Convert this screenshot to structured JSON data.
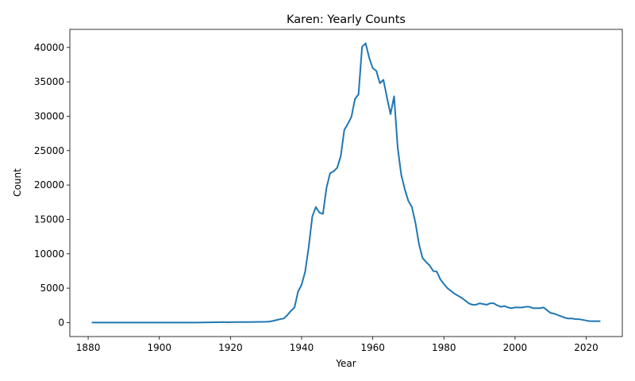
{
  "chart_data": {
    "type": "line",
    "title": "Karen: Yearly Counts",
    "xlabel": "Year",
    "ylabel": "Count",
    "xlim": [
      1874.85,
      2030.15
    ],
    "ylim": [
      -2030,
      42630
    ],
    "xticks": [
      1880,
      1900,
      1920,
      1940,
      1960,
      1980,
      2000,
      2020
    ],
    "yticks": [
      0,
      5000,
      10000,
      15000,
      20000,
      25000,
      30000,
      35000,
      40000
    ],
    "grid": false,
    "line_color": "#1f77b4",
    "series": [
      {
        "x": [
          1881,
          1885,
          1890,
          1895,
          1900,
          1905,
          1910,
          1912,
          1914,
          1916,
          1918,
          1919,
          1920,
          1922,
          1925,
          1928,
          1930,
          1931,
          1932,
          1933,
          1934,
          1935,
          1936,
          1937,
          1938,
          1939,
          1940,
          1941,
          1942,
          1943,
          1944,
          1945,
          1946,
          1947,
          1948,
          1949,
          1950,
          1951,
          1952,
          1953,
          1954,
          1955,
          1956,
          1957,
          1958,
          1959,
          1960,
          1961,
          1962,
          1963,
          1964,
          1965,
          1966,
          1967,
          1968,
          1969,
          1970,
          1971,
          1972,
          1973,
          1974,
          1975,
          1976,
          1977,
          1978,
          1979,
          1980,
          1981,
          1982,
          1983,
          1984,
          1985,
          1986,
          1987,
          1988,
          1989,
          1990,
          1991,
          1992,
          1993,
          1994,
          1995,
          1996,
          1997,
          1998,
          1999,
          2000,
          2001,
          2002,
          2003,
          2004,
          2005,
          2006,
          2007,
          2008,
          2009,
          2010,
          2011,
          2012,
          2013,
          2014,
          2015,
          2016,
          2017,
          2018,
          2019,
          2020,
          2021,
          2022,
          2023,
          2024
        ],
        "y": [
          10,
          10,
          10,
          10,
          10,
          10,
          10,
          20,
          30,
          50,
          70,
          50,
          60,
          70,
          80,
          100,
          120,
          150,
          250,
          380,
          500,
          600,
          1100,
          1700,
          2200,
          4500,
          5500,
          7400,
          11000,
          15400,
          16800,
          16000,
          15800,
          19600,
          21700,
          22000,
          22500,
          24200,
          28000,
          28900,
          29900,
          32500,
          33200,
          40100,
          40600,
          38500,
          37000,
          36600,
          34800,
          35300,
          32700,
          30300,
          32900,
          25500,
          21500,
          19400,
          17700,
          16800,
          14500,
          11400,
          9400,
          8800,
          8300,
          7500,
          7400,
          6300,
          5600,
          5000,
          4600,
          4200,
          3900,
          3600,
          3200,
          2800,
          2600,
          2600,
          2800,
          2700,
          2600,
          2800,
          2800,
          2500,
          2300,
          2400,
          2200,
          2100,
          2200,
          2200,
          2200,
          2300,
          2300,
          2100,
          2100,
          2100,
          2200,
          1800,
          1400,
          1300,
          1100,
          900,
          700,
          600,
          600,
          500,
          500,
          400,
          300,
          200,
          200,
          200,
          200
        ]
      }
    ]
  }
}
